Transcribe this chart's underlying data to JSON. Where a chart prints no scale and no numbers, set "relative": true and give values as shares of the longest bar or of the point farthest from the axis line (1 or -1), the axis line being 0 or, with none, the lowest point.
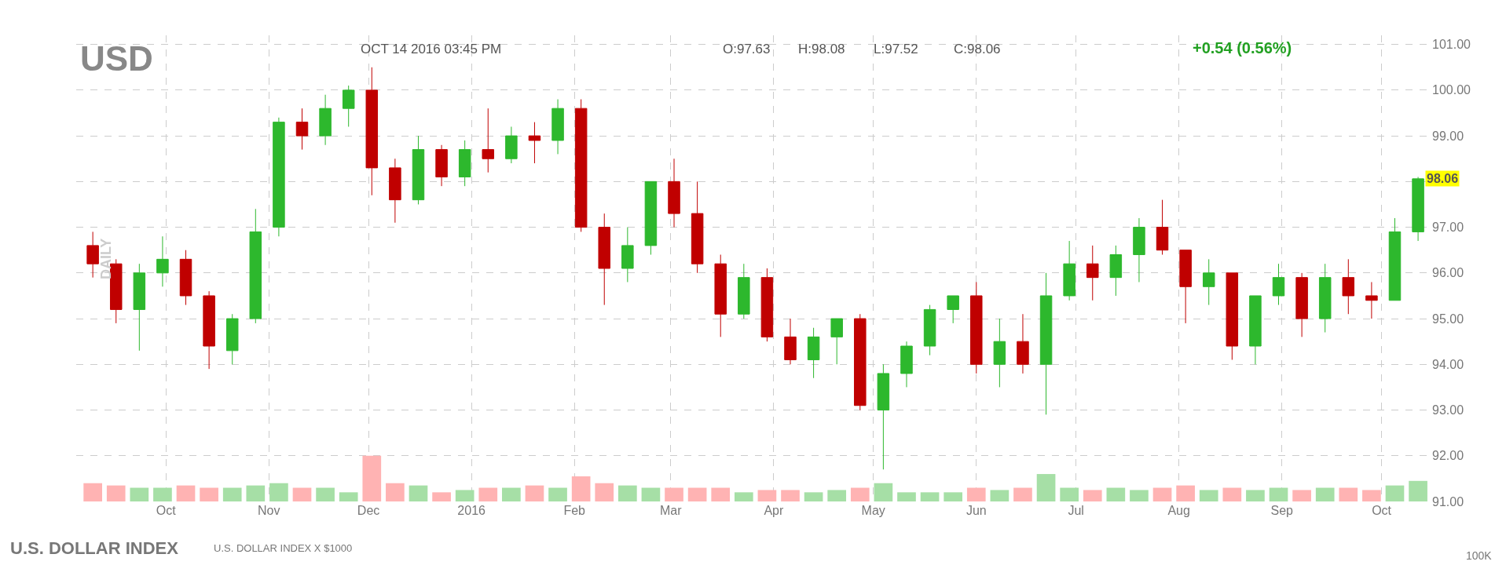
{
  "chart_data": [
    {
      "type": "candlestick",
      "title": "USD",
      "subtitle": "OCT 14 2016 03:45 PM",
      "ylabel": "DAILY",
      "annotations": [
        "O:97.63",
        "H:98.08",
        "L:97.52",
        "C:98.06",
        "+0.54 (0.56%)",
        "U.S. DOLLAR INDEX",
        "U.S. DOLLAR INDEX X $1000",
        "100K",
        {
          "text": "98.06",
          "x": "2016-10-14",
          "y": 98.06
        }
      ],
      "x": [
        "2015-09-09",
        "2015-09-16",
        "2015-09-23",
        "2015-09-30",
        "2015-10-07",
        "2015-10-14",
        "2015-10-21",
        "2015-10-28",
        "2015-11-04",
        "2015-11-11",
        "2015-11-18",
        "2015-11-25",
        "2015-12-02",
        "2015-12-09",
        "2015-12-16",
        "2015-12-23",
        "2015-12-30",
        "2016-01-06",
        "2016-01-13",
        "2016-01-20",
        "2016-01-27",
        "2016-02-03",
        "2016-02-10",
        "2016-02-17",
        "2016-02-24",
        "2016-03-02",
        "2016-03-09",
        "2016-03-16",
        "2016-03-23",
        "2016-03-30",
        "2016-04-06",
        "2016-04-13",
        "2016-04-20",
        "2016-04-27",
        "2016-05-04",
        "2016-05-11",
        "2016-05-18",
        "2016-05-25",
        "2016-06-01",
        "2016-06-08",
        "2016-06-15",
        "2016-06-22",
        "2016-06-29",
        "2016-07-06",
        "2016-07-13",
        "2016-07-20",
        "2016-07-27",
        "2016-08-03",
        "2016-08-10",
        "2016-08-17",
        "2016-08-24",
        "2016-08-31",
        "2016-09-07",
        "2016-09-14",
        "2016-09-21",
        "2016-09-28",
        "2016-10-05",
        "2016-10-12"
      ],
      "ohlc": [
        [
          96.6,
          96.9,
          95.9,
          96.2
        ],
        [
          96.2,
          96.3,
          94.9,
          95.2
        ],
        [
          95.2,
          96.2,
          94.3,
          96.0
        ],
        [
          96.0,
          96.8,
          95.7,
          96.3
        ],
        [
          96.3,
          96.5,
          95.3,
          95.5
        ],
        [
          95.5,
          95.6,
          93.9,
          94.4
        ],
        [
          94.3,
          95.1,
          94.0,
          95.0
        ],
        [
          95.0,
          97.4,
          94.9,
          96.9
        ],
        [
          97.0,
          99.4,
          96.8,
          99.3
        ],
        [
          99.3,
          99.6,
          98.7,
          99.0
        ],
        [
          99.0,
          99.9,
          98.8,
          99.6
        ],
        [
          99.6,
          100.1,
          99.2,
          100.0
        ],
        [
          100.0,
          100.5,
          97.7,
          98.3
        ],
        [
          98.3,
          98.5,
          97.1,
          97.6
        ],
        [
          97.6,
          99.0,
          97.5,
          98.7
        ],
        [
          98.7,
          98.8,
          97.9,
          98.1
        ],
        [
          98.1,
          98.9,
          97.9,
          98.7
        ],
        [
          98.7,
          99.6,
          98.2,
          98.5
        ],
        [
          98.5,
          99.2,
          98.4,
          99.0
        ],
        [
          99.0,
          99.3,
          98.4,
          98.9
        ],
        [
          98.9,
          99.8,
          98.6,
          99.6
        ],
        [
          99.6,
          99.8,
          96.9,
          97.0
        ],
        [
          97.0,
          97.3,
          95.3,
          96.1
        ],
        [
          96.1,
          97.0,
          95.8,
          96.6
        ],
        [
          96.6,
          98.0,
          96.4,
          98.0
        ],
        [
          98.0,
          98.5,
          97.0,
          97.3
        ],
        [
          97.3,
          98.0,
          96.0,
          96.2
        ],
        [
          96.2,
          96.4,
          94.6,
          95.1
        ],
        [
          95.1,
          96.2,
          95.0,
          95.9
        ],
        [
          95.9,
          96.1,
          94.5,
          94.6
        ],
        [
          94.6,
          95.0,
          94.0,
          94.1
        ],
        [
          94.1,
          94.8,
          93.7,
          94.6
        ],
        [
          94.6,
          95.0,
          94.0,
          95.0
        ],
        [
          95.0,
          95.1,
          93.0,
          93.1
        ],
        [
          93.0,
          94.0,
          91.7,
          93.8
        ],
        [
          93.8,
          94.5,
          93.5,
          94.4
        ],
        [
          94.4,
          95.3,
          94.2,
          95.2
        ],
        [
          95.2,
          95.5,
          94.9,
          95.5
        ],
        [
          95.5,
          95.8,
          93.8,
          94.0
        ],
        [
          94.0,
          95.0,
          93.5,
          94.5
        ],
        [
          94.5,
          95.1,
          93.8,
          94.0
        ],
        [
          94.0,
          96.0,
          92.9,
          95.5
        ],
        [
          95.5,
          96.7,
          95.4,
          96.2
        ],
        [
          96.2,
          96.6,
          95.4,
          95.9
        ],
        [
          95.9,
          96.6,
          95.5,
          96.4
        ],
        [
          96.4,
          97.2,
          95.8,
          97.0
        ],
        [
          97.0,
          97.6,
          96.4,
          96.5
        ],
        [
          96.5,
          96.5,
          94.9,
          95.7
        ],
        [
          95.7,
          96.3,
          95.3,
          96.0
        ],
        [
          96.0,
          96.0,
          94.1,
          94.4
        ],
        [
          94.4,
          95.5,
          94.0,
          95.5
        ],
        [
          95.5,
          96.2,
          95.3,
          95.9
        ],
        [
          95.9,
          96.0,
          94.6,
          95.0
        ],
        [
          95.0,
          96.2,
          94.7,
          95.9
        ],
        [
          95.9,
          96.3,
          95.1,
          95.5
        ],
        [
          95.5,
          95.8,
          95.0,
          95.4
        ],
        [
          95.4,
          97.2,
          95.4,
          96.9
        ],
        [
          96.9,
          98.1,
          96.7,
          98.06
        ]
      ],
      "colors": [
        "#c00000",
        "#c00000",
        "#2db82d",
        "#2db82d",
        "#c00000",
        "#c00000",
        "#2db82d",
        "#2db82d",
        "#2db82d",
        "#c00000",
        "#2db82d",
        "#2db82d",
        "#c00000",
        "#c00000",
        "#2db82d",
        "#c00000",
        "#2db82d",
        "#c00000",
        "#2db82d",
        "#c00000",
        "#2db82d",
        "#c00000",
        "#c00000",
        "#2db82d",
        "#2db82d",
        "#c00000",
        "#c00000",
        "#c00000",
        "#2db82d",
        "#c00000",
        "#c00000",
        "#2db82d",
        "#2db82d",
        "#c00000",
        "#2db82d",
        "#2db82d",
        "#2db82d",
        "#2db82d",
        "#c00000",
        "#2db82d",
        "#c00000",
        "#2db82d",
        "#2db82d",
        "#c00000",
        "#2db82d",
        "#2db82d",
        "#c00000",
        "#c00000",
        "#2db82d",
        "#c00000",
        "#2db82d",
        "#2db82d",
        "#c00000",
        "#2db82d",
        "#c00000",
        "#c00000",
        "#2db82d",
        "#2db82d"
      ],
      "xlim": [
        "2015-09-04",
        "2016-10-16"
      ],
      "xticks": [
        {
          "value": "2015-10-01",
          "label": "Oct"
        },
        {
          "value": "2015-11-01",
          "label": "Nov"
        },
        {
          "value": "2015-12-01",
          "label": "Dec"
        },
        {
          "value": "2016-01-01",
          "label": "2016"
        },
        {
          "value": "2016-02-01",
          "label": "Feb"
        },
        {
          "value": "2016-03-01",
          "label": "Mar"
        },
        {
          "value": "2016-04-01",
          "label": "Apr"
        },
        {
          "value": "2016-05-01",
          "label": "May"
        },
        {
          "value": "2016-06-01",
          "label": "Jun"
        },
        {
          "value": "2016-07-01",
          "label": "Jul"
        },
        {
          "value": "2016-08-01",
          "label": "Aug"
        },
        {
          "value": "2016-09-01",
          "label": "Sep"
        },
        {
          "value": "2016-10-01",
          "label": "Oct"
        }
      ],
      "ylim": [
        91,
        101.2
      ],
      "yticks": [
        {
          "value": 91,
          "label": "91.00"
        },
        {
          "value": 92,
          "label": "92.00"
        },
        {
          "value": 93,
          "label": "93.00"
        },
        {
          "value": 94,
          "label": "94.00"
        },
        {
          "value": 95,
          "label": "95.00"
        },
        {
          "value": 96,
          "label": "96.00"
        },
        {
          "value": 97,
          "label": "97.00"
        },
        {
          "value": 98,
          "label": null
        },
        {
          "value": 99,
          "label": "99.00"
        },
        {
          "value": 100,
          "label": "100.00"
        },
        {
          "value": 101,
          "label": "101.00"
        }
      ],
      "grid": true
    },
    {
      "type": "bar",
      "relative": true,
      "xlim": [
        "2015-09-04",
        "2016-10-16"
      ],
      "tick_labels": false,
      "x": [
        "2015-09-09",
        "2015-09-16",
        "2015-09-23",
        "2015-09-30",
        "2015-10-07",
        "2015-10-14",
        "2015-10-21",
        "2015-10-28",
        "2015-11-04",
        "2015-11-11",
        "2015-11-18",
        "2015-11-25",
        "2015-12-02",
        "2015-12-09",
        "2015-12-16",
        "2015-12-23",
        "2015-12-30",
        "2016-01-06",
        "2016-01-13",
        "2016-01-20",
        "2016-01-27",
        "2016-02-03",
        "2016-02-10",
        "2016-02-17",
        "2016-02-24",
        "2016-03-02",
        "2016-03-09",
        "2016-03-16",
        "2016-03-23",
        "2016-03-30",
        "2016-04-06",
        "2016-04-13",
        "2016-04-20",
        "2016-04-27",
        "2016-05-04",
        "2016-05-11",
        "2016-05-18",
        "2016-05-25",
        "2016-06-01",
        "2016-06-08",
        "2016-06-15",
        "2016-06-22",
        "2016-06-29",
        "2016-07-06",
        "2016-07-13",
        "2016-07-20",
        "2016-07-27",
        "2016-08-03",
        "2016-08-10",
        "2016-08-17",
        "2016-08-24",
        "2016-08-31",
        "2016-09-07",
        "2016-09-14",
        "2016-09-21",
        "2016-09-28",
        "2016-10-05",
        "2016-10-12"
      ],
      "values": [
        0.4,
        0.35,
        0.3,
        0.3,
        0.35,
        0.3,
        0.3,
        0.35,
        0.4,
        0.3,
        0.3,
        0.2,
        1.0,
        0.4,
        0.35,
        0.2,
        0.25,
        0.3,
        0.3,
        0.35,
        0.3,
        0.55,
        0.4,
        0.35,
        0.3,
        0.3,
        0.3,
        0.3,
        0.2,
        0.25,
        0.25,
        0.2,
        0.25,
        0.3,
        0.4,
        0.2,
        0.2,
        0.2,
        0.3,
        0.25,
        0.3,
        0.6,
        0.3,
        0.25,
        0.3,
        0.25,
        0.3,
        0.35,
        0.25,
        0.3,
        0.25,
        0.3,
        0.25,
        0.3,
        0.3,
        0.25,
        0.35,
        0.45
      ],
      "colors": [
        "#ffb3b3",
        "#ffb3b3",
        "#a6dfa6",
        "#a6dfa6",
        "#ffb3b3",
        "#ffb3b3",
        "#a6dfa6",
        "#a6dfa6",
        "#a6dfa6",
        "#ffb3b3",
        "#a6dfa6",
        "#a6dfa6",
        "#ffb3b3",
        "#ffb3b3",
        "#a6dfa6",
        "#ffb3b3",
        "#a6dfa6",
        "#ffb3b3",
        "#a6dfa6",
        "#ffb3b3",
        "#a6dfa6",
        "#ffb3b3",
        "#ffb3b3",
        "#a6dfa6",
        "#a6dfa6",
        "#ffb3b3",
        "#ffb3b3",
        "#ffb3b3",
        "#a6dfa6",
        "#ffb3b3",
        "#ffb3b3",
        "#a6dfa6",
        "#a6dfa6",
        "#ffb3b3",
        "#a6dfa6",
        "#a6dfa6",
        "#a6dfa6",
        "#a6dfa6",
        "#ffb3b3",
        "#a6dfa6",
        "#ffb3b3",
        "#a6dfa6",
        "#a6dfa6",
        "#ffb3b3",
        "#a6dfa6",
        "#a6dfa6",
        "#ffb3b3",
        "#ffb3b3",
        "#a6dfa6",
        "#ffb3b3",
        "#a6dfa6",
        "#a6dfa6",
        "#ffb3b3",
        "#a6dfa6",
        "#ffb3b3",
        "#ffb3b3",
        "#a6dfa6",
        "#a6dfa6"
      ]
    }
  ]
}
